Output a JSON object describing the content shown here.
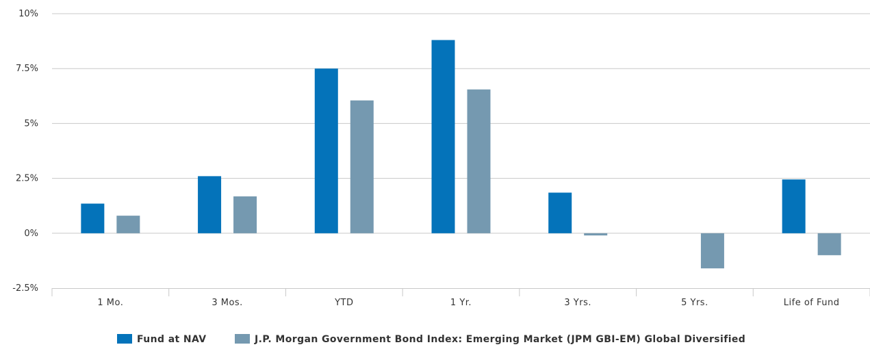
{
  "chart_data": {
    "type": "bar",
    "categories": [
      "1 Mo.",
      "3 Mos.",
      "YTD",
      "1 Yr.",
      "3 Yrs.",
      "5 Yrs.",
      "Life of Fund"
    ],
    "series": [
      {
        "name": "Fund at NAV",
        "color": "#0473ba",
        "values": [
          1.35,
          2.6,
          7.5,
          8.8,
          1.85,
          null,
          2.45
        ]
      },
      {
        "name": "J.P. Morgan Government Bond Index: Emerging Market (JPM GBI-EM) Global Diversified",
        "color": "#7599b0",
        "values": [
          0.8,
          1.68,
          6.05,
          6.55,
          -0.1,
          -1.6,
          -1.0
        ]
      }
    ],
    "ylim": [
      -2.5,
      10
    ],
    "yticks": [
      -2.5,
      0,
      2.5,
      5,
      7.5,
      10
    ],
    "ytick_labels": [
      "-2.5%",
      "0%",
      "2.5%",
      "5%",
      "7.5%",
      "10%"
    ],
    "grid": true,
    "legend_position": "bottom-center"
  }
}
